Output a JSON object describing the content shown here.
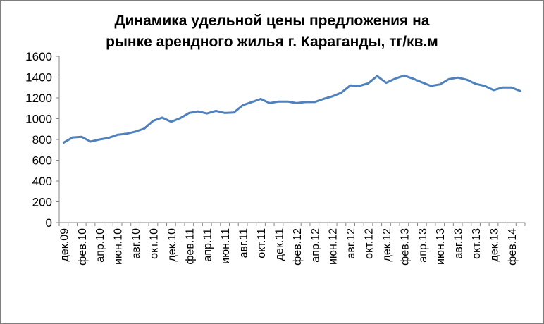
{
  "chart_data": {
    "type": "line",
    "title": "Динамика удельной цены предложения на рынке арендного жилья г. Караганды, тг/кв.м",
    "title_lines": [
      "Динамика удельной цены предложения на",
      "рынке арендного жилья г. Караганды, тг/кв.м"
    ],
    "xlabel": "",
    "ylabel": "",
    "ylim": [
      0,
      1600
    ],
    "yticks": [
      0,
      200,
      400,
      600,
      800,
      1000,
      1200,
      1400,
      1600
    ],
    "grid": false,
    "legend": "none",
    "x": [
      "дек.09",
      "янв.10",
      "фев.10",
      "мар.10",
      "апр.10",
      "май.10",
      "июн.10",
      "июл.10",
      "авг.10",
      "сен.10",
      "окт.10",
      "ноя.10",
      "дек.10",
      "янв.11",
      "фев.11",
      "мар.11",
      "апр.11",
      "май.11",
      "июн.11",
      "июл.11",
      "авг.11",
      "сен.11",
      "окт.11",
      "ноя.11",
      "дек.11",
      "янв.12",
      "фев.12",
      "мар.12",
      "апр.12",
      "май.12",
      "июн.12",
      "июл.12",
      "авг.12",
      "сен.12",
      "окт.12",
      "ноя.12",
      "дек.12",
      "янв.13",
      "фев.13",
      "мар.13",
      "апр.13",
      "май.13",
      "июн.13",
      "июл.13",
      "авг.13",
      "сен.13",
      "окт.13",
      "ноя.13",
      "дек.13",
      "янв.14",
      "фев.14",
      "мар.14"
    ],
    "x_tick_labels": [
      "дек.09",
      "фев.10",
      "апр.10",
      "июн.10",
      "авг.10",
      "окт.10",
      "дек.10",
      "фев.11",
      "апр.11",
      "июн.11",
      "авг.11",
      "окт.11",
      "дек.11",
      "фев.12",
      "апр.12",
      "июн.12",
      "авг.12",
      "окт.12",
      "дек.12",
      "фев.13",
      "апр.13",
      "июн.13",
      "авг.13",
      "окт.13",
      "дек.13",
      "фев.14"
    ],
    "series": [
      {
        "color": "#4f81bd",
        "values": [
          770,
          820,
          825,
          780,
          800,
          815,
          845,
          855,
          875,
          905,
          980,
          1010,
          970,
          1005,
          1055,
          1070,
          1050,
          1075,
          1055,
          1060,
          1130,
          1160,
          1190,
          1150,
          1165,
          1165,
          1150,
          1160,
          1160,
          1190,
          1215,
          1250,
          1320,
          1315,
          1340,
          1410,
          1345,
          1385,
          1415,
          1385,
          1350,
          1315,
          1330,
          1380,
          1395,
          1375,
          1335,
          1315,
          1275,
          1300,
          1300,
          1265
        ]
      }
    ]
  }
}
